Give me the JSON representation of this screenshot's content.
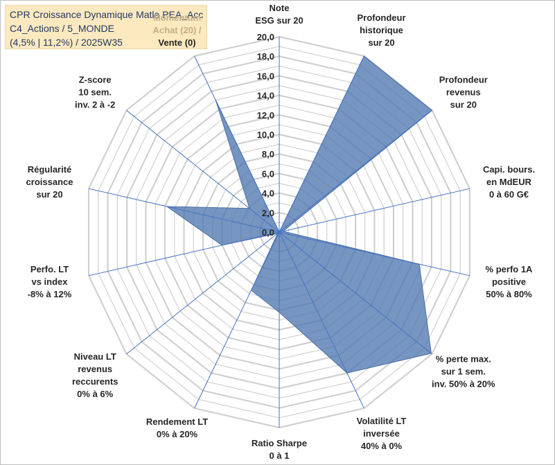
{
  "title_lines": [
    "CPR Croissance Dynamique Matla PEA_Acc",
    "C4_Actions / 5_MONDE",
    "(4,5% | 11,2%) / 2025W35"
  ],
  "chart_data": {
    "type": "radar",
    "r_range": [
      0,
      20
    ],
    "r_ticks": [
      "0,0",
      "2,0",
      "4,0",
      "6,0",
      "8,0",
      "10,0",
      "12,0",
      "14,0",
      "16,0",
      "18,0",
      "20,0"
    ],
    "grid": true,
    "legend": "none",
    "colors": {
      "fill": "#4f77b0",
      "fill_opacity": "0.78",
      "grid": "#d0d0d0",
      "spoke": "#4472c4"
    },
    "axes": [
      {
        "label": [
          "Note",
          "ESG sur 20"
        ],
        "value": 0.0
      },
      {
        "label": [
          "Profondeur",
          "historique",
          "sur 20"
        ],
        "value": 20.0
      },
      {
        "label": [
          "Profondeur",
          "revenus",
          "sur 20"
        ],
        "value": 20.0
      },
      {
        "label": [
          "Capi. bours.",
          "en MdEUR",
          "0 à 60 G€"
        ],
        "value": 0.4
      },
      {
        "label": [
          "% perfo 1A",
          "positive",
          "50% à 80%"
        ],
        "value": 14.7
      },
      {
        "label": [
          "% perte max.",
          "sur 1 sem.",
          "inv. 50% à 20%"
        ],
        "value": 19.9
      },
      {
        "label": [
          "Volatilité LT",
          "inversée",
          "40% à 0%"
        ],
        "value": 16.0
      },
      {
        "label": [
          "Ratio Sharpe",
          "0 à 1"
        ],
        "value": 8.2
      },
      {
        "label": [
          "Rendement LT",
          "0% à 20%"
        ],
        "value": 6.6
      },
      {
        "label": [
          "Niveau LT",
          "revenus",
          "reccurents",
          "0% à 6%"
        ],
        "value": 0.2
      },
      {
        "label": [
          "Perfo. LT",
          "vs index",
          "-8% à 12%"
        ],
        "value": 6.0
      },
      {
        "label": [
          "Régularité",
          "croissance",
          "sur 20"
        ],
        "value": 11.8
      },
      {
        "label": [
          "Z-score",
          "10 sem.",
          "inv. 2 à -2"
        ],
        "value": 3.9
      },
      {
        "label": [
          "Momentum",
          "Achat (20) /",
          "Vente (0)"
        ],
        "value": 15.0,
        "muted_lines": 2
      }
    ]
  }
}
